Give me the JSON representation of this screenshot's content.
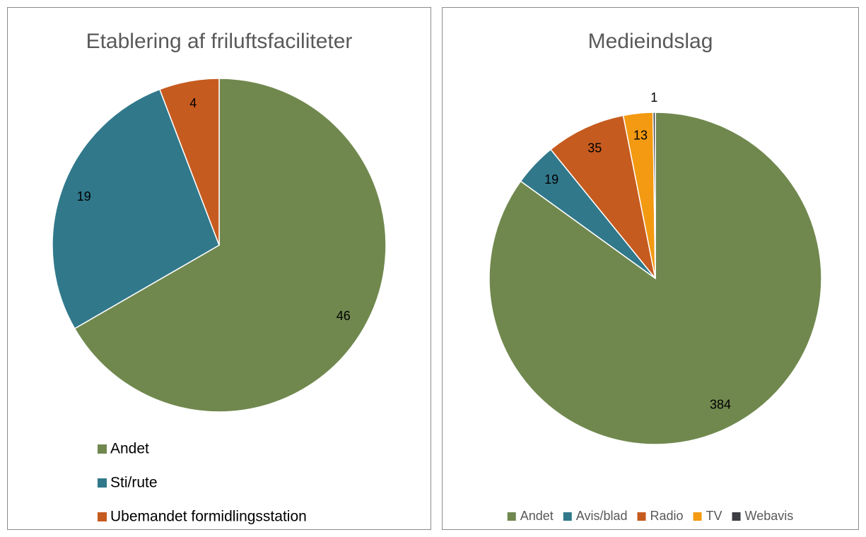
{
  "chart_data": [
    {
      "type": "pie",
      "title": "Etablering af friluftsfaciliteter",
      "categories": [
        "Andet",
        "Sti/rute",
        "Ubemandet formidlingsstation"
      ],
      "values": [
        46,
        19,
        4
      ],
      "colors": [
        "#70884e",
        "#31788b",
        "#c65b1f"
      ],
      "legend": "bottom-left",
      "legend_orientation": "vertical"
    },
    {
      "type": "pie",
      "title": "Medieindslag",
      "categories": [
        "Andet",
        "Avis/blad",
        "Radio",
        "TV",
        "Webavis"
      ],
      "values": [
        384,
        19,
        35,
        13,
        1
      ],
      "colors": [
        "#70884e",
        "#31788b",
        "#c65b1f",
        "#f39a12",
        "#3d3d44"
      ],
      "legend": "bottom",
      "legend_orientation": "horizontal"
    }
  ]
}
